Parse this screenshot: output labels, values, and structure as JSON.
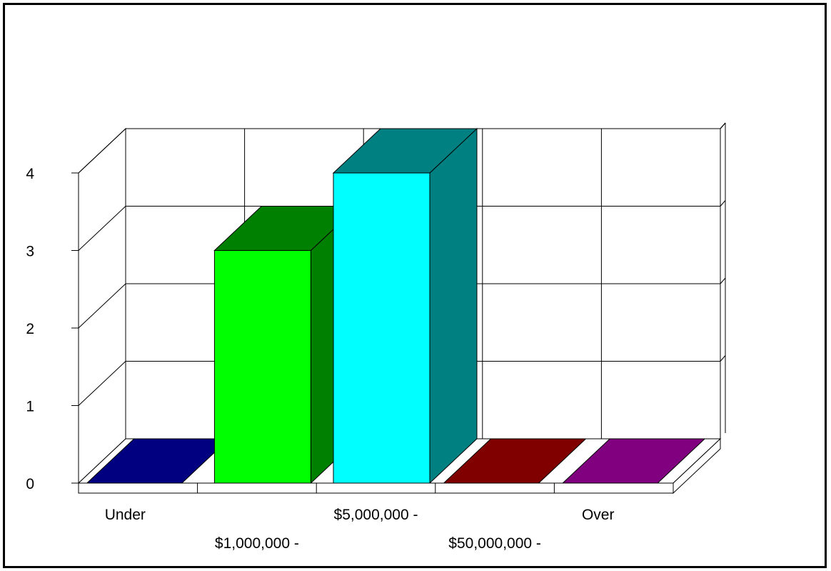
{
  "chart_data": {
    "type": "bar",
    "style": "3d-column",
    "categories": [
      "Under",
      "$1,000,000 -",
      "$5,000,000 -",
      "$50,000,000 -",
      "Over"
    ],
    "values": [
      0,
      3,
      4,
      0,
      0
    ],
    "ylim": [
      0,
      4
    ],
    "yticks": [
      0,
      1,
      2,
      3,
      4
    ],
    "grid": true,
    "legend": "none",
    "colors": {
      "front": [
        "#000080",
        "#00ff00",
        "#00ffff",
        "#800000",
        "#800080"
      ],
      "side": [
        "#000080",
        "#008000",
        "#008080",
        "#800000",
        "#800080"
      ]
    }
  }
}
